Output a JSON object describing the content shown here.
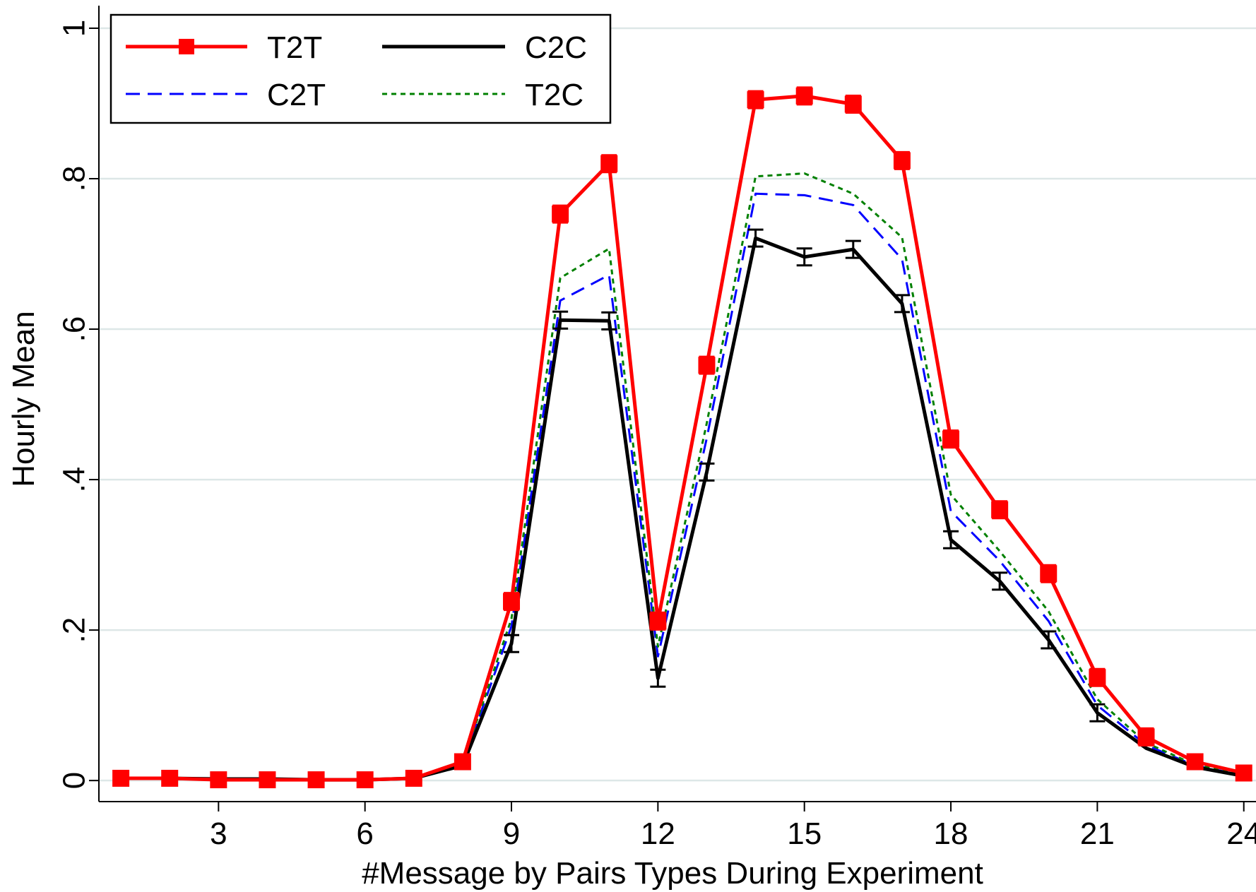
{
  "chart_data": {
    "type": "line",
    "xlabel": "#Message by Pairs Types During Experiment",
    "ylabel": "Hourly Mean",
    "xlim": [
      0.55,
      24.25
    ],
    "ylim": [
      -0.028,
      1.03
    ],
    "x_ticks": [
      3,
      6,
      9,
      12,
      15,
      18,
      21,
      24
    ],
    "x_tick_labels": [
      "3",
      "6",
      "9",
      "12",
      "15",
      "18",
      "21",
      "24"
    ],
    "y_ticks": [
      0,
      0.2,
      0.4,
      0.6,
      0.8,
      1
    ],
    "y_tick_labels": [
      "0",
      ".2",
      ".4",
      ".6",
      ".8",
      "1"
    ],
    "grid": "horizontal",
    "legend_position": "top-left",
    "x": [
      1,
      2,
      3,
      4,
      5,
      6,
      7,
      8,
      9,
      10,
      11,
      12,
      13,
      14,
      15,
      16,
      17,
      18,
      19,
      20,
      21,
      22,
      23,
      24
    ],
    "series": [
      {
        "name": "T2T",
        "color": "#ff0000",
        "style": "solid-square-markers",
        "error_bars": true,
        "values": [
          0.003,
          0.003,
          0.001,
          0.001,
          0.001,
          0.001,
          0.003,
          0.025,
          0.238,
          0.753,
          0.82,
          0.212,
          0.552,
          0.905,
          0.91,
          0.899,
          0.824,
          0.454,
          0.36,
          0.275,
          0.137,
          0.058,
          0.025,
          0.01
        ]
      },
      {
        "name": "C2C",
        "color": "#000000",
        "style": "solid",
        "error_bars": true,
        "values": [
          0.003,
          0.003,
          0.002,
          0.002,
          0.001,
          0.001,
          0.003,
          0.02,
          0.182,
          0.612,
          0.611,
          0.136,
          0.41,
          0.721,
          0.696,
          0.706,
          0.634,
          0.32,
          0.265,
          0.187,
          0.09,
          0.043,
          0.018,
          0.006
        ]
      },
      {
        "name": "C2T",
        "color": "#0000ff",
        "style": "dashed",
        "error_bars": false,
        "values": [
          0.003,
          0.003,
          0.002,
          0.002,
          0.001,
          0.001,
          0.003,
          0.022,
          0.205,
          0.638,
          0.672,
          0.165,
          0.455,
          0.78,
          0.778,
          0.765,
          0.693,
          0.358,
          0.292,
          0.212,
          0.1,
          0.047,
          0.02,
          0.007
        ]
      },
      {
        "name": "T2C",
        "color": "#008000",
        "style": "dotted",
        "error_bars": false,
        "values": [
          0.003,
          0.003,
          0.002,
          0.002,
          0.001,
          0.001,
          0.003,
          0.024,
          0.215,
          0.668,
          0.707,
          0.178,
          0.475,
          0.803,
          0.807,
          0.78,
          0.722,
          0.38,
          0.305,
          0.225,
          0.108,
          0.05,
          0.021,
          0.008
        ]
      }
    ],
    "legend": [
      {
        "name": "T2T",
        "series": "T2T"
      },
      {
        "name": "C2C",
        "series": "C2C"
      },
      {
        "name": "C2T",
        "series": "C2T"
      },
      {
        "name": "T2C",
        "series": "T2C"
      }
    ]
  }
}
